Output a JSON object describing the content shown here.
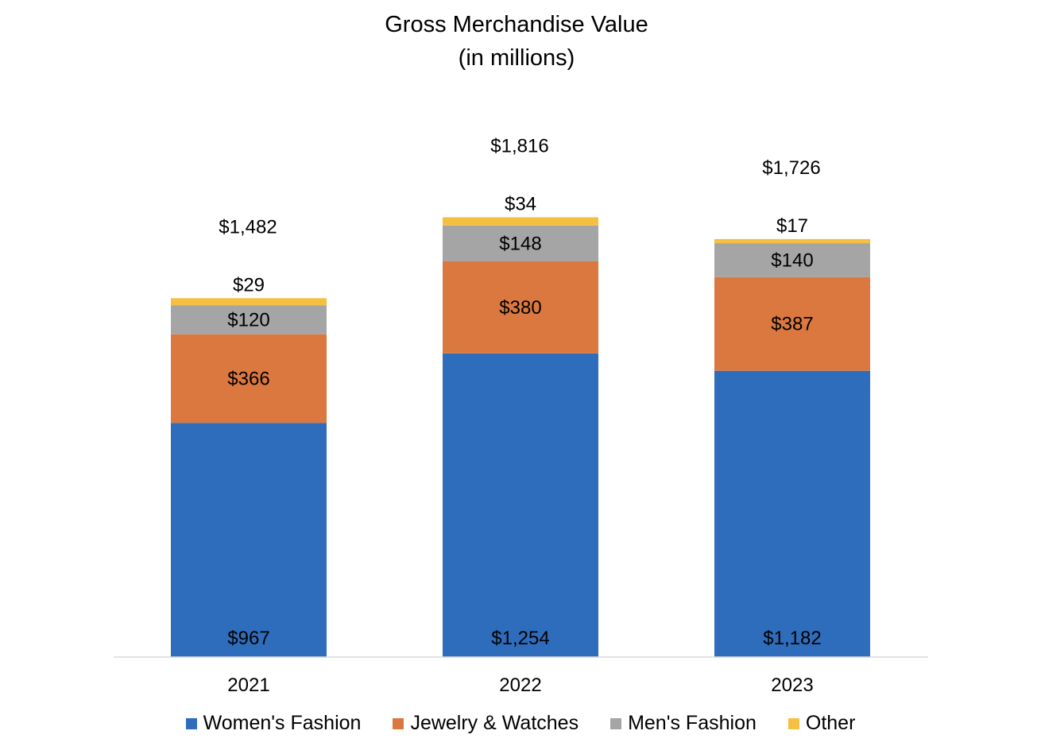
{
  "chart_data": {
    "type": "bar",
    "stacked": true,
    "title": "Gross Merchandise Value",
    "subtitle": "(in millions)",
    "xlabel": "",
    "ylabel": "",
    "ylim": [
      0,
      2000
    ],
    "grid": false,
    "legend_position": "bottom",
    "categories": [
      "2021",
      "2022",
      "2023"
    ],
    "series": [
      {
        "name": "Women's Fashion",
        "color": "#2E6DBB",
        "values": [
          967,
          1254,
          1182
        ],
        "labels": [
          "$967",
          "$1,254",
          "$1,182"
        ]
      },
      {
        "name": "Jewelry & Watches",
        "color": "#DA7840",
        "values": [
          366,
          380,
          387
        ],
        "labels": [
          "$366",
          "$380",
          "$387"
        ]
      },
      {
        "name": "Men's Fashion",
        "color": "#A5A5A5",
        "values": [
          120,
          148,
          140
        ],
        "labels": [
          "$120",
          "$148",
          "$140"
        ]
      },
      {
        "name": "Other",
        "color": "#F5BF42",
        "values": [
          29,
          34,
          17
        ],
        "labels": [
          "$29",
          "$34",
          "$17"
        ]
      }
    ],
    "totals": [
      1482,
      1816,
      1726
    ],
    "total_labels": [
      "$1,482",
      "$1,816",
      "$1,726"
    ]
  }
}
